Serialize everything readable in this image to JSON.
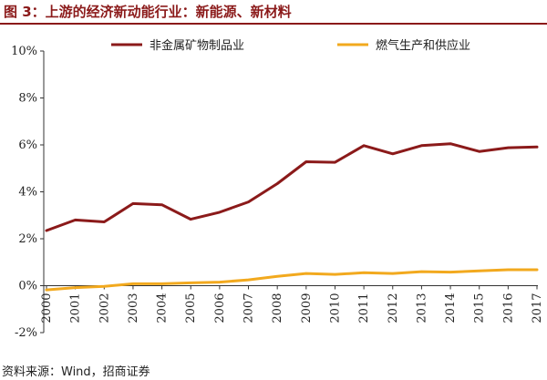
{
  "figure_title": "图 3：上游的经济新动能行业：新能源、新材料",
  "source_note": "资料来源：Wind，招商证券",
  "colors": {
    "title": "#8B1A1A",
    "series1": "#8B1A1A",
    "series2": "#F2A91E",
    "axis": "#333333"
  },
  "chart_data": {
    "type": "line",
    "title": "图 3：上游的经济新动能行业：新能源、新材料",
    "x": [
      "2000",
      "2001",
      "2002",
      "2003",
      "2004",
      "2005",
      "2006",
      "2007",
      "2008",
      "2009",
      "2010",
      "2011",
      "2012",
      "2013",
      "2014",
      "2015",
      "2016",
      "2017"
    ],
    "xlabel": "",
    "ylabel": "",
    "ylim": [
      -0.02,
      0.1
    ],
    "yticks": [
      -0.02,
      0,
      0.02,
      0.04,
      0.06,
      0.08,
      0.1
    ],
    "ytick_labels": [
      "-2%",
      "0%",
      "2%",
      "4%",
      "6%",
      "8%",
      "10%"
    ],
    "grid": false,
    "legend": "top",
    "series": [
      {
        "name": "非金属矿物制品业",
        "color": "#8B1A1A",
        "values": [
          0.0235,
          0.028,
          0.0272,
          0.035,
          0.0345,
          0.0283,
          0.0313,
          0.0357,
          0.0435,
          0.0528,
          0.0526,
          0.0597,
          0.0562,
          0.0597,
          0.0605,
          0.0572,
          0.0588,
          0.0591
        ]
      },
      {
        "name": "燃气生产和供应业",
        "color": "#F2A91E",
        "values": [
          -0.0018,
          -0.0008,
          -0.0003,
          0.0008,
          0.0008,
          0.0012,
          0.0015,
          0.0025,
          0.004,
          0.0052,
          0.0048,
          0.0055,
          0.0052,
          0.006,
          0.0058,
          0.0063,
          0.0068,
          0.0068
        ]
      }
    ]
  }
}
